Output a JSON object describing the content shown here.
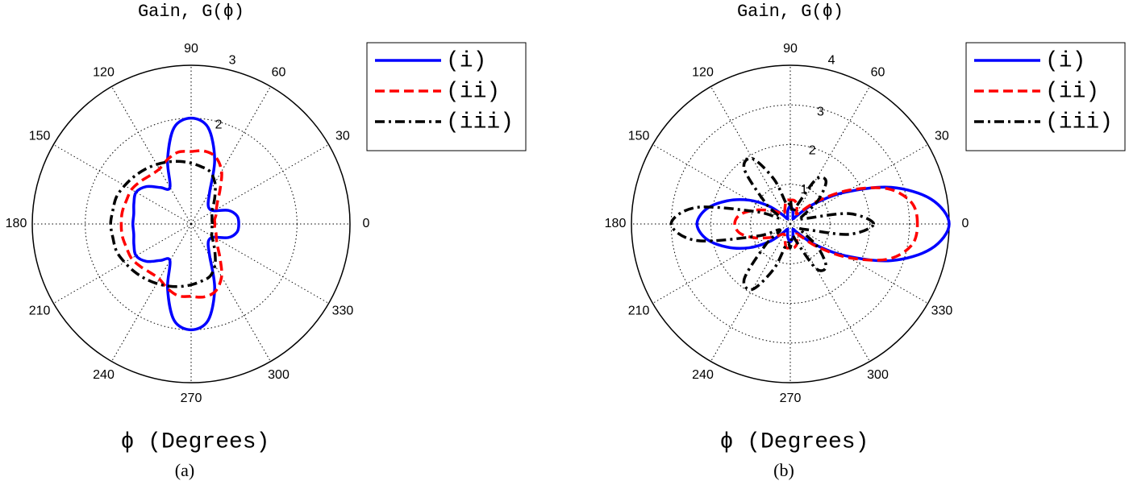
{
  "chart_data": [
    {
      "type": "polar",
      "title": "Gain, G(ϕ)",
      "xlabel": "ϕ (Degrees)",
      "caption": "(a)",
      "theta": [
        0,
        10,
        20,
        30,
        40,
        50,
        60,
        70,
        80,
        90,
        100,
        110,
        120,
        130,
        140,
        150,
        160,
        170,
        180,
        190,
        200,
        210,
        220,
        230,
        240,
        250,
        260,
        270,
        280,
        290,
        300,
        310,
        320,
        330,
        340,
        350
      ],
      "thetaticks": [
        0,
        30,
        60,
        90,
        120,
        150,
        180,
        210,
        240,
        270,
        300,
        330
      ],
      "rlim": [
        0,
        3
      ],
      "rticks": [
        2,
        3
      ],
      "grid": true,
      "legend": "top-right",
      "series": [
        {
          "name": "(i)",
          "color": "#0000ff",
          "dash": "solid",
          "values": [
            0.9,
            0.88,
            0.75,
            0.5,
            0.45,
            0.5,
            0.7,
            1.3,
            1.85,
            2.0,
            1.85,
            1.3,
            0.8,
            0.9,
            1.1,
            1.2,
            1.15,
            1.1,
            1.1,
            1.1,
            1.15,
            1.2,
            1.1,
            0.9,
            0.8,
            1.3,
            1.85,
            2.0,
            1.85,
            1.3,
            0.7,
            0.5,
            0.45,
            0.5,
            0.75,
            0.88
          ]
        },
        {
          "name": "(ii)",
          "color": "#ff0000",
          "dash": "dashed",
          "values": [
            0.45,
            0.45,
            0.5,
            0.55,
            0.65,
            0.85,
            1.15,
            1.35,
            1.4,
            1.37,
            1.38,
            1.3,
            1.2,
            1.2,
            1.25,
            1.3,
            1.3,
            1.32,
            1.32,
            1.32,
            1.3,
            1.3,
            1.25,
            1.2,
            1.2,
            1.3,
            1.38,
            1.37,
            1.4,
            1.35,
            1.15,
            0.85,
            0.65,
            0.55,
            0.5,
            0.45
          ]
        },
        {
          "name": "(iii)",
          "color": "#000000",
          "dash": "dashdot",
          "values": [
            0.4,
            0.4,
            0.42,
            0.45,
            0.55,
            0.7,
            0.9,
            1.05,
            1.1,
            1.15,
            1.2,
            1.25,
            1.3,
            1.35,
            1.4,
            1.45,
            1.5,
            1.5,
            1.52,
            1.5,
            1.5,
            1.45,
            1.4,
            1.35,
            1.3,
            1.25,
            1.2,
            1.15,
            1.1,
            1.05,
            0.9,
            0.7,
            0.55,
            0.45,
            0.42,
            0.4
          ]
        }
      ]
    },
    {
      "type": "polar",
      "title": "Gain, G(ϕ)",
      "xlabel": "ϕ (Degrees)",
      "caption": "(b)",
      "theta": [
        0,
        10,
        20,
        30,
        40,
        50,
        60,
        70,
        80,
        90,
        100,
        110,
        120,
        130,
        140,
        150,
        160,
        170,
        180,
        190,
        200,
        210,
        220,
        230,
        240,
        250,
        260,
        270,
        280,
        290,
        300,
        310,
        320,
        330,
        340,
        350
      ],
      "thetaticks": [
        0,
        30,
        60,
        90,
        120,
        150,
        180,
        210,
        240,
        270,
        300,
        330
      ],
      "rlim": [
        0,
        4
      ],
      "rticks": [
        1,
        2,
        3,
        4
      ],
      "grid": true,
      "legend": "top-right",
      "series": [
        {
          "name": "(i)",
          "color": "#0000ff",
          "dash": "solid",
          "values": [
            4.0,
            3.6,
            2.7,
            1.6,
            0.8,
            0.3,
            0.15,
            0.2,
            0.35,
            0.45,
            0.35,
            0.2,
            0.15,
            0.3,
            0.7,
            1.2,
            1.7,
            2.15,
            2.35,
            2.15,
            1.7,
            1.2,
            0.7,
            0.3,
            0.15,
            0.2,
            0.35,
            0.45,
            0.35,
            0.2,
            0.15,
            0.3,
            0.8,
            1.6,
            2.7,
            3.6
          ]
        },
        {
          "name": "(ii)",
          "color": "#ff0000",
          "dash": "dashed",
          "values": [
            3.2,
            3.1,
            2.6,
            1.7,
            0.9,
            0.4,
            0.3,
            0.5,
            0.6,
            0.6,
            0.6,
            0.4,
            0.3,
            0.35,
            0.5,
            0.7,
            1.0,
            1.3,
            1.4,
            1.3,
            1.0,
            0.7,
            0.5,
            0.35,
            0.3,
            0.4,
            0.6,
            0.6,
            0.6,
            0.5,
            0.3,
            0.4,
            0.9,
            1.7,
            2.6,
            3.1
          ]
        },
        {
          "name": "(iii)",
          "color": "#000000",
          "dash": "dashdot",
          "values": [
            2.1,
            1.5,
            0.4,
            0.3,
            0.9,
            1.4,
            1.3,
            0.5,
            0.3,
            0.6,
            0.5,
            1.2,
            1.9,
            1.8,
            0.8,
            0.3,
            0.9,
            2.4,
            3.0,
            2.4,
            0.9,
            0.3,
            0.8,
            1.8,
            1.9,
            1.2,
            0.5,
            0.6,
            0.3,
            0.5,
            1.3,
            1.4,
            0.9,
            0.3,
            0.4,
            1.5
          ]
        }
      ]
    }
  ]
}
